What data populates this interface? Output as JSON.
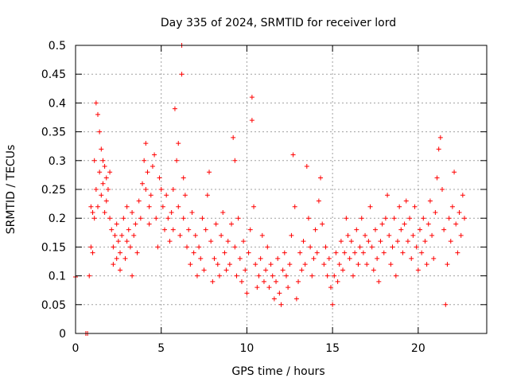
{
  "chart_data": {
    "type": "scatter",
    "title": "Day 335 of 2024, SRMTID for receiver lord",
    "xlabel": "GPS time / hours",
    "ylabel": "SRMTID / TECUs",
    "xlim": [
      0,
      24
    ],
    "ylim": [
      0,
      0.5
    ],
    "xticks": [
      0,
      5,
      10,
      15,
      20
    ],
    "xtick_labels": [
      "0",
      "5",
      "10",
      "15",
      "20"
    ],
    "yticks": [
      0,
      0.05,
      0.1,
      0.15,
      0.2,
      0.25,
      0.3,
      0.35,
      0.4,
      0.45,
      0.5
    ],
    "ytick_labels": [
      "0",
      "0.05",
      "0.1",
      "0.15",
      "0.2",
      "0.25",
      "0.3",
      "0.35",
      "0.4",
      "0.45",
      "0.5"
    ],
    "grid": true,
    "legend": "none",
    "marker": "plus",
    "series": [
      {
        "color": "#ff0000",
        "points": [
          [
            0.0,
            0.098
          ],
          [
            0.6,
            0.0
          ],
          [
            0.7,
            0.0
          ],
          [
            0.8,
            0.1
          ],
          [
            0.9,
            0.15
          ],
          [
            0.9,
            0.22
          ],
          [
            1.0,
            0.21
          ],
          [
            1.0,
            0.14
          ],
          [
            1.1,
            0.2
          ],
          [
            1.1,
            0.3
          ],
          [
            1.2,
            0.25
          ],
          [
            1.2,
            0.4
          ],
          [
            1.3,
            0.38
          ],
          [
            1.3,
            0.22
          ],
          [
            1.4,
            0.35
          ],
          [
            1.4,
            0.28
          ],
          [
            1.5,
            0.24
          ],
          [
            1.5,
            0.32
          ],
          [
            1.6,
            0.3
          ],
          [
            1.6,
            0.26
          ],
          [
            1.7,
            0.29
          ],
          [
            1.7,
            0.21
          ],
          [
            1.8,
            0.27
          ],
          [
            1.8,
            0.23
          ],
          [
            1.9,
            0.25
          ],
          [
            2.0,
            0.28
          ],
          [
            2.0,
            0.2
          ],
          [
            2.1,
            0.18
          ],
          [
            2.2,
            0.15
          ],
          [
            2.2,
            0.12
          ],
          [
            2.3,
            0.17
          ],
          [
            2.4,
            0.13
          ],
          [
            2.4,
            0.19
          ],
          [
            2.5,
            0.16
          ],
          [
            2.6,
            0.11
          ],
          [
            2.6,
            0.14
          ],
          [
            2.7,
            0.17
          ],
          [
            2.8,
            0.2
          ],
          [
            2.9,
            0.13
          ],
          [
            3.0,
            0.16
          ],
          [
            3.0,
            0.22
          ],
          [
            3.1,
            0.18
          ],
          [
            3.2,
            0.15
          ],
          [
            3.3,
            0.1
          ],
          [
            3.3,
            0.21
          ],
          [
            3.4,
            0.17
          ],
          [
            3.5,
            0.19
          ],
          [
            3.6,
            0.14
          ],
          [
            3.7,
            0.23
          ],
          [
            3.8,
            0.2
          ],
          [
            3.9,
            0.26
          ],
          [
            4.0,
            0.3
          ],
          [
            4.1,
            0.25
          ],
          [
            4.1,
            0.33
          ],
          [
            4.2,
            0.28
          ],
          [
            4.3,
            0.22
          ],
          [
            4.3,
            0.19
          ],
          [
            4.4,
            0.24
          ],
          [
            4.5,
            0.29
          ],
          [
            4.6,
            0.31
          ],
          [
            4.7,
            0.2
          ],
          [
            4.8,
            0.15
          ],
          [
            4.9,
            0.27
          ],
          [
            5.0,
            0.25
          ],
          [
            5.1,
            0.22
          ],
          [
            5.2,
            0.18
          ],
          [
            5.3,
            0.24
          ],
          [
            5.4,
            0.2
          ],
          [
            5.5,
            0.16
          ],
          [
            5.6,
            0.21
          ],
          [
            5.7,
            0.18
          ],
          [
            5.7,
            0.25
          ],
          [
            5.8,
            0.39
          ],
          [
            5.9,
            0.3
          ],
          [
            6.0,
            0.33
          ],
          [
            6.0,
            0.22
          ],
          [
            6.1,
            0.17
          ],
          [
            6.2,
            0.5
          ],
          [
            6.2,
            0.45
          ],
          [
            6.3,
            0.27
          ],
          [
            6.3,
            0.2
          ],
          [
            6.4,
            0.24
          ],
          [
            6.5,
            0.15
          ],
          [
            6.6,
            0.18
          ],
          [
            6.7,
            0.12
          ],
          [
            6.8,
            0.21
          ],
          [
            6.9,
            0.14
          ],
          [
            7.0,
            0.17
          ],
          [
            7.1,
            0.1
          ],
          [
            7.2,
            0.15
          ],
          [
            7.3,
            0.13
          ],
          [
            7.4,
            0.2
          ],
          [
            7.5,
            0.11
          ],
          [
            7.6,
            0.18
          ],
          [
            7.7,
            0.24
          ],
          [
            7.8,
            0.28
          ],
          [
            7.9,
            0.16
          ],
          [
            8.0,
            0.09
          ],
          [
            8.1,
            0.13
          ],
          [
            8.2,
            0.19
          ],
          [
            8.3,
            0.12
          ],
          [
            8.4,
            0.1
          ],
          [
            8.5,
            0.17
          ],
          [
            8.6,
            0.21
          ],
          [
            8.7,
            0.14
          ],
          [
            8.8,
            0.11
          ],
          [
            8.9,
            0.16
          ],
          [
            9.0,
            0.12
          ],
          [
            9.1,
            0.19
          ],
          [
            9.2,
            0.34
          ],
          [
            9.3,
            0.3
          ],
          [
            9.3,
            0.15
          ],
          [
            9.4,
            0.1
          ],
          [
            9.5,
            0.2
          ],
          [
            9.6,
            0.13
          ],
          [
            9.7,
            0.09
          ],
          [
            9.8,
            0.16
          ],
          [
            9.9,
            0.11
          ],
          [
            10.0,
            0.07
          ],
          [
            10.1,
            0.14
          ],
          [
            10.2,
            0.18
          ],
          [
            10.3,
            0.41
          ],
          [
            10.3,
            0.37
          ],
          [
            10.4,
            0.22
          ],
          [
            10.5,
            0.12
          ],
          [
            10.6,
            0.08
          ],
          [
            10.7,
            0.1
          ],
          [
            10.8,
            0.13
          ],
          [
            10.9,
            0.17
          ],
          [
            11.0,
            0.09
          ],
          [
            11.1,
            0.11
          ],
          [
            11.2,
            0.15
          ],
          [
            11.3,
            0.08
          ],
          [
            11.4,
            0.12
          ],
          [
            11.5,
            0.1
          ],
          [
            11.6,
            0.06
          ],
          [
            11.7,
            0.09
          ],
          [
            11.8,
            0.13
          ],
          [
            11.9,
            0.07
          ],
          [
            12.0,
            0.05
          ],
          [
            12.1,
            0.11
          ],
          [
            12.2,
            0.14
          ],
          [
            12.3,
            0.1
          ],
          [
            12.4,
            0.08
          ],
          [
            12.5,
            0.12
          ],
          [
            12.6,
            0.17
          ],
          [
            12.7,
            0.31
          ],
          [
            12.8,
            0.22
          ],
          [
            12.9,
            0.06
          ],
          [
            13.0,
            0.09
          ],
          [
            13.1,
            0.14
          ],
          [
            13.2,
            0.11
          ],
          [
            13.3,
            0.16
          ],
          [
            13.4,
            0.12
          ],
          [
            13.5,
            0.29
          ],
          [
            13.6,
            0.2
          ],
          [
            13.7,
            0.15
          ],
          [
            13.8,
            0.1
          ],
          [
            13.9,
            0.13
          ],
          [
            14.0,
            0.18
          ],
          [
            14.1,
            0.14
          ],
          [
            14.2,
            0.23
          ],
          [
            14.3,
            0.27
          ],
          [
            14.4,
            0.19
          ],
          [
            14.5,
            0.12
          ],
          [
            14.6,
            0.15
          ],
          [
            14.7,
            0.1
          ],
          [
            14.8,
            0.13
          ],
          [
            14.9,
            0.08
          ],
          [
            15.0,
            0.05
          ],
          [
            15.1,
            0.1
          ],
          [
            15.2,
            0.14
          ],
          [
            15.3,
            0.09
          ],
          [
            15.4,
            0.12
          ],
          [
            15.5,
            0.16
          ],
          [
            15.6,
            0.11
          ],
          [
            15.7,
            0.14
          ],
          [
            15.8,
            0.2
          ],
          [
            15.9,
            0.17
          ],
          [
            16.0,
            0.13
          ],
          [
            16.1,
            0.16
          ],
          [
            16.2,
            0.1
          ],
          [
            16.3,
            0.14
          ],
          [
            16.4,
            0.18
          ],
          [
            16.5,
            0.12
          ],
          [
            16.6,
            0.15
          ],
          [
            16.7,
            0.2
          ],
          [
            16.8,
            0.14
          ],
          [
            16.9,
            0.17
          ],
          [
            17.0,
            0.12
          ],
          [
            17.1,
            0.16
          ],
          [
            17.2,
            0.22
          ],
          [
            17.3,
            0.15
          ],
          [
            17.4,
            0.11
          ],
          [
            17.5,
            0.18
          ],
          [
            17.6,
            0.13
          ],
          [
            17.7,
            0.09
          ],
          [
            17.8,
            0.16
          ],
          [
            17.9,
            0.19
          ],
          [
            18.0,
            0.14
          ],
          [
            18.1,
            0.2
          ],
          [
            18.2,
            0.24
          ],
          [
            18.3,
            0.17
          ],
          [
            18.4,
            0.12
          ],
          [
            18.5,
            0.15
          ],
          [
            18.6,
            0.2
          ],
          [
            18.7,
            0.1
          ],
          [
            18.8,
            0.16
          ],
          [
            18.9,
            0.22
          ],
          [
            19.0,
            0.18
          ],
          [
            19.1,
            0.14
          ],
          [
            19.2,
            0.19
          ],
          [
            19.3,
            0.23
          ],
          [
            19.4,
            0.16
          ],
          [
            19.5,
            0.2
          ],
          [
            19.6,
            0.13
          ],
          [
            19.7,
            0.17
          ],
          [
            19.8,
            0.22
          ],
          [
            19.9,
            0.15
          ],
          [
            20.0,
            0.11
          ],
          [
            20.1,
            0.18
          ],
          [
            20.2,
            0.14
          ],
          [
            20.3,
            0.2
          ],
          [
            20.4,
            0.16
          ],
          [
            20.5,
            0.12
          ],
          [
            20.6,
            0.19
          ],
          [
            20.7,
            0.23
          ],
          [
            20.8,
            0.17
          ],
          [
            20.9,
            0.13
          ],
          [
            21.0,
            0.21
          ],
          [
            21.1,
            0.27
          ],
          [
            21.2,
            0.32
          ],
          [
            21.3,
            0.34
          ],
          [
            21.4,
            0.25
          ],
          [
            21.5,
            0.18
          ],
          [
            21.6,
            0.05
          ],
          [
            21.7,
            0.12
          ],
          [
            21.8,
            0.2
          ],
          [
            21.9,
            0.16
          ],
          [
            22.0,
            0.22
          ],
          [
            22.1,
            0.28
          ],
          [
            22.2,
            0.19
          ],
          [
            22.3,
            0.14
          ],
          [
            22.4,
            0.21
          ],
          [
            22.5,
            0.17
          ],
          [
            22.6,
            0.24
          ],
          [
            22.7,
            0.2
          ]
        ]
      }
    ]
  }
}
